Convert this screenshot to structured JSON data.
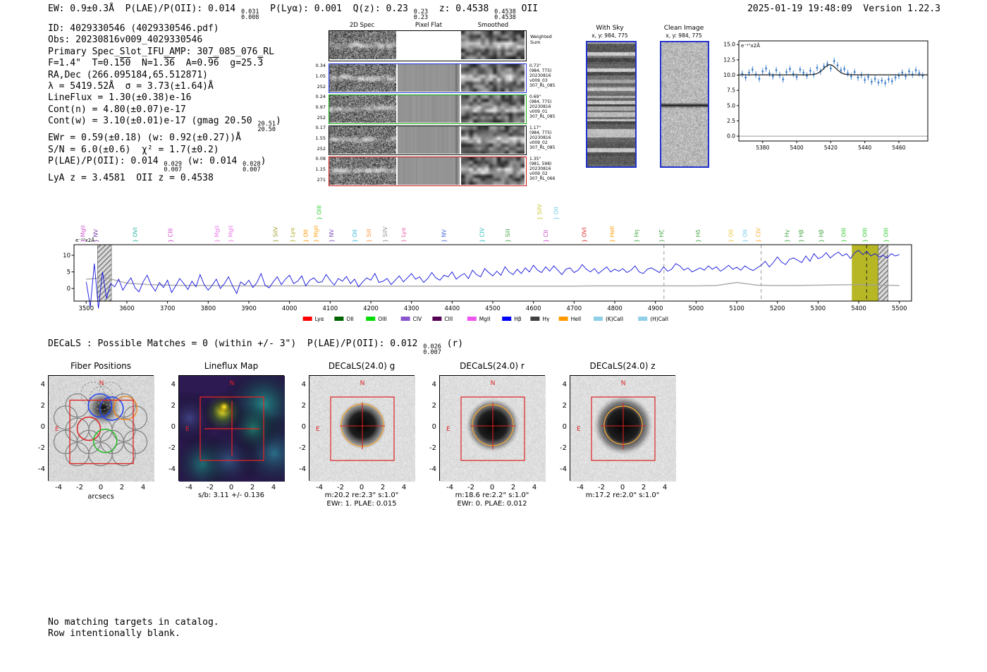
{
  "header": {
    "left": [
      {
        "t": "EW: 0.9±0.3Å  P(LAE)/P(OII): 0.014 "
      },
      {
        "frac": [
          "0.031",
          "0.008"
        ]
      },
      {
        "t": "  P(Lyα): 0.001  Q(z): 0.23 "
      },
      {
        "frac": [
          "0.23",
          "0.23"
        ]
      },
      {
        "t": "  z: 0.4538 "
      },
      {
        "frac": [
          "0.4538",
          "0.4538"
        ]
      },
      {
        "t": " OII"
      }
    ],
    "right": "2025-01-19 19:48:09  Version 1.22.3"
  },
  "info_lines": [
    [
      {
        "t": "ID: 4029330546 (4029330546.pdf)"
      }
    ],
    [
      {
        "t": "Obs: 20230816v009_4029330546"
      }
    ],
    [
      {
        "t": "Primary Spec_Slot_IFU_AMP: 307_085_076_RL"
      }
    ],
    [
      {
        "t": "F=1.4\"  T=0.1"
      },
      {
        "t": "50",
        "o": true
      },
      {
        "t": "  N=1."
      },
      {
        "t": "36",
        "o": true
      },
      {
        "t": "  A=0."
      },
      {
        "t": "96",
        "o": true
      },
      {
        "t": "  g=25."
      },
      {
        "t": "3",
        "o": true
      }
    ],
    [
      {
        "t": "RA,Dec (266.095184,65.512871)"
      }
    ],
    [
      {
        "t": "λ = 5419.52Å  σ = 3.73(±1.64)Å"
      }
    ],
    [
      {
        "t": "LineFlux = 1.30(±0.38)e-16"
      }
    ],
    [
      {
        "t": "Cont(n) = 4.80(±0.07)e-17"
      }
    ],
    [
      {
        "t": "Cont(w) = 3.10(±0.01)e-17 (gmag 20.50 "
      },
      {
        "frac": [
          "20.51",
          "20.50"
        ]
      },
      {
        "t": ")"
      }
    ],
    [
      {
        "t": "EWr = 0.59(±0.18) (w: 0.92(±0.27))Å"
      }
    ],
    [
      {
        "t": "S/N = 6.0(±0.6)  χ² = 1.7(±0.2)"
      }
    ],
    [
      {
        "t": "P(LAE)/P(OII): 0.014 "
      },
      {
        "frac": [
          "0.029",
          "0.007"
        ]
      },
      {
        "t": " (w: 0.014 "
      },
      {
        "frac": [
          "0.028",
          "0.007"
        ]
      },
      {
        "t": ")"
      }
    ],
    [
      {
        "t": "LyA z = 3.4581  OII z = 0.4538"
      }
    ]
  ],
  "spec2d": {
    "col_headers": [
      "2D Spec",
      "Pixel Flat",
      "Smoothed"
    ],
    "sum_label": [
      "Weighted",
      "Sum"
    ],
    "rows": [
      {
        "left": [
          "0.34",
          "1.05",
          "252"
        ],
        "right": [
          "0.73\"",
          "(984, 775)",
          "20230816",
          "v009_03",
          "307_RL_085"
        ],
        "color": "#2233dd"
      },
      {
        "left": [
          "0.24",
          "0.97",
          "252"
        ],
        "right": [
          "0.69\"",
          "(984, 775)",
          "20230816",
          "v009_01",
          "307_RL_085"
        ],
        "color": "#11aa11"
      },
      {
        "left": [
          "0.17",
          "1.55",
          "252"
        ],
        "right": [
          "1.17\"",
          "(984, 775)",
          "20230816",
          "v009_02",
          "307_RL_085"
        ],
        "color": "#000000"
      },
      {
        "left": [
          "0.08",
          "1.15",
          "271"
        ],
        "right": [
          "1.35\"",
          "(981, 598)",
          "20230816",
          "v009_02",
          "307_RL_066"
        ],
        "color": "#cc1111"
      }
    ]
  },
  "sky_panels": [
    {
      "title": "With Sky",
      "subtitle": "x, y: 984, 775"
    },
    {
      "title": "Clean Image",
      "subtitle": "x, y: 984, 775"
    }
  ],
  "decals_line": [
    {
      "t": "DECaLS : Possible Matches = 0 (within +/- 3\")  P(LAE)/P(OII): 0.012 "
    },
    {
      "frac": [
        "0.026",
        "0.007"
      ]
    },
    {
      "t": " (r)"
    }
  ],
  "cutouts": [
    {
      "name": "fiber-positions-panel",
      "kind": "fiber",
      "title": "Fiber Positions",
      "xlabel": "arcsecs"
    },
    {
      "name": "lineflux-map-panel",
      "kind": "lineflux",
      "title": "Lineflux Map",
      "caption": "s/b: 3.11 +/- 0.136"
    },
    {
      "name": "decals-g-panel",
      "kind": "decals",
      "title": "DECaLS(24.0) g",
      "caption": "m:20.2 re:2.3\" s:1.0\"",
      "caption2": "EWr: 1. PLAE: 0.015"
    },
    {
      "name": "decals-r-panel",
      "kind": "decals",
      "title": "DECaLS(24.0) r",
      "caption": "m:18.6 re:2.2\" s:1.0\"",
      "caption2": "EWr: 0. PLAE: 0.012"
    },
    {
      "name": "decals-z-panel",
      "kind": "decals",
      "title": "DECaLS(24.0) z",
      "caption": "m:17.2 re:2.0\" s:1.0\""
    }
  ],
  "cutout_axis": {
    "ticks": [
      -4,
      -2,
      0,
      2,
      4
    ],
    "north": "N",
    "east": "E"
  },
  "footer": [
    "No matching targets in catalog.",
    "Row intentionally blank."
  ],
  "chart_data": [
    {
      "type": "line",
      "name": "emission-line-fit",
      "corner_label": "e⁻¹⁷x2Å",
      "xlim": [
        5366,
        5477
      ],
      "ylim": [
        -0.8,
        15.6
      ],
      "x_ticks": [
        5380,
        5400,
        5420,
        5440,
        5460
      ],
      "y_ticks": [
        0.0,
        2.5,
        5.0,
        7.5,
        10.0,
        12.5,
        15.0
      ],
      "x_start": 5368,
      "x_step": 2,
      "points_y": [
        10.2,
        9.6,
        10.4,
        10.9,
        10.1,
        9.4,
        10.6,
        11.1,
        10.3,
        9.8,
        10.8,
        10.0,
        9.3,
        10.5,
        11.0,
        10.2,
        9.7,
        10.9,
        10.4,
        9.9,
        10.7,
        10.1,
        11.2,
        10.6,
        11.4,
        11.8,
        11.1,
        12.3,
        11.6,
        10.8,
        11.0,
        10.3,
        9.8,
        10.5,
        9.6,
        10.0,
        9.2,
        9.7,
        8.9,
        9.4,
        8.8,
        9.1,
        8.7,
        9.3,
        9.0,
        9.6,
        9.9,
        10.4,
        9.8,
        10.6,
        10.1,
        10.8,
        10.3,
        9.9
      ],
      "point_err": 0.55,
      "fit": {
        "continuum": 10.05,
        "amplitude": 1.65,
        "mu": 5419.5,
        "sigma": 3.73
      },
      "point_color": "#3b7dc8",
      "fit_color": "#1a1a1a"
    },
    {
      "type": "line",
      "name": "full-width-spectrum",
      "corner_label": "e⁻¹⁷x2Å",
      "xlim": [
        3470,
        5530
      ],
      "ylim": [
        -3.8,
        13.2
      ],
      "x_ticks": [
        3500,
        3600,
        3700,
        3800,
        3900,
        4000,
        4100,
        4200,
        4300,
        4400,
        4500,
        4600,
        4700,
        4800,
        4900,
        5000,
        5100,
        5200,
        5300,
        5400,
        5500
      ],
      "y_ticks": [
        0,
        5,
        10
      ],
      "x_start": 3500,
      "x_step": 10,
      "flux": [
        2.0,
        -5.5,
        7.5,
        -6.0,
        5.0,
        -3.0,
        1.5,
        0.5,
        2.8,
        -0.5,
        1.5,
        3.2,
        0.2,
        -1.0,
        2.0,
        4.0,
        1.0,
        -0.8,
        1.8,
        0.3,
        2.5,
        -1.2,
        0.8,
        3.0,
        1.5,
        -0.3,
        2.2,
        0.5,
        4.2,
        1.2,
        -0.5,
        1.0,
        2.8,
        0.0,
        1.5,
        3.5,
        0.8,
        -1.5,
        2.0,
        1.0,
        2.5,
        0.3,
        1.8,
        4.5,
        1.0,
        0.2,
        2.0,
        3.5,
        1.2,
        2.8,
        4.0,
        1.5,
        2.2,
        3.8,
        0.8,
        2.5,
        3.2,
        1.8,
        2.0,
        4.2,
        2.5,
        1.0,
        3.0,
        2.2,
        3.6,
        1.5,
        2.8,
        0.5,
        2.0,
        3.2,
        2.5,
        4.5,
        1.8,
        2.2,
        3.0,
        1.2,
        2.5,
        3.8,
        2.0,
        3.2,
        4.5,
        2.8,
        3.5,
        1.8,
        3.0,
        4.8,
        3.2,
        2.5,
        4.0,
        3.5,
        5.0,
        2.8,
        3.8,
        4.5,
        3.0,
        5.5,
        4.2,
        3.5,
        6.0,
        4.8,
        3.8,
        5.2,
        4.0,
        6.5,
        5.0,
        4.2,
        5.8,
        4.5,
        6.2,
        5.0,
        7.0,
        5.5,
        4.8,
        6.5,
        5.2,
        6.8,
        5.5,
        4.2,
        5.8,
        6.2,
        4.8,
        5.5,
        7.2,
        5.8,
        5.0,
        6.0,
        4.5,
        5.5,
        6.5,
        5.0,
        5.8,
        5.2,
        6.0,
        4.8,
        5.5,
        6.8,
        5.0,
        4.5,
        5.8,
        6.2,
        5.5,
        4.8,
        6.5,
        5.2,
        5.8,
        7.5,
        6.8,
        5.5,
        6.2,
        5.0,
        5.6,
        6.2,
        5.5,
        6.8,
        5.8,
        6.5,
        5.2,
        6.0,
        7.0,
        5.8,
        6.4,
        5.5,
        6.8,
        6.0,
        5.4,
        6.2,
        7.0,
        8.2,
        6.5,
        7.8,
        9.5,
        8.0,
        7.2,
        8.8,
        9.2,
        8.5,
        7.8,
        9.8,
        8.2,
        10.5,
        9.0,
        9.5,
        10.8,
        9.2,
        10.2,
        11.0,
        9.8,
        10.5,
        9.0,
        10.8,
        11.5,
        10.2,
        11.2,
        9.8,
        10.5,
        9.5,
        10.0,
        9.2,
        10.5,
        9.8,
        10.2
      ],
      "noise_x_start": 3500,
      "noise_x_step": 50,
      "noise": [
        2.8,
        3.2,
        1.6,
        1.2,
        1.0,
        0.9,
        0.9,
        0.8,
        0.8,
        0.8,
        0.8,
        0.8,
        0.7,
        0.7,
        0.7,
        0.7,
        0.7,
        0.7,
        0.7,
        0.7,
        0.7,
        0.7,
        0.7,
        0.7,
        0.7,
        0.8,
        0.8,
        0.8,
        0.8,
        0.8,
        0.8,
        0.9,
        1.8,
        1.0,
        0.9,
        0.9,
        1.0,
        1.1,
        1.2,
        1.0,
        0.9
      ],
      "line_color": "#1111dd",
      "noise_color": "#a0a0a0",
      "bands": [
        {
          "x0": 3528,
          "x1": 3562,
          "style": "hatch"
        },
        {
          "x0": 5383,
          "x1": 5448,
          "style": "solid",
          "color": "#b3b31a"
        },
        {
          "x0": 5448,
          "x1": 5472,
          "style": "hatch"
        }
      ],
      "vlines": [
        {
          "x": 4921,
          "color": "#999999"
        },
        {
          "x": 5160,
          "color": "#999999"
        },
        {
          "x": 5419.5,
          "color": "#222222"
        }
      ],
      "line_labels": [
        {
          "name": "MgII",
          "x": 3497,
          "color": "#cc55cc"
        },
        {
          "name": "NV",
          "x": 3528,
          "color": "#7a3fa8"
        },
        {
          "name": "OVI",
          "x": 3625,
          "color": "#2ab0a0"
        },
        {
          "name": "CIII",
          "x": 3712,
          "color": "#cc44cc"
        },
        {
          "name": "MgII",
          "x": 3826,
          "color": "#e878e8"
        },
        {
          "name": "MgII",
          "x": 3860,
          "color": "#e878e8"
        },
        {
          "name": "SiIV",
          "x": 3970,
          "color": "#a0a030"
        },
        {
          "name": "Lyα",
          "x": 4012,
          "color": "#b0b030"
        },
        {
          "name": "OII",
          "x": 4045,
          "color": "#ff9500"
        },
        {
          "name": "MgII",
          "x": 4070,
          "color": "#ffa520"
        },
        {
          "name": "OIII",
          "x": 4078,
          "color": "#33cc33",
          "up": 1
        },
        {
          "name": "NV",
          "x": 4108,
          "color": "#8050c0"
        },
        {
          "name": "OII",
          "x": 4165,
          "color": "#38b8d8"
        },
        {
          "name": "SiII",
          "x": 4200,
          "color": "#ff9540"
        },
        {
          "name": "SiIV",
          "x": 4240,
          "color": "#909090"
        },
        {
          "name": "Lyα",
          "x": 4285,
          "color": "#e868a8"
        },
        {
          "name": "NV",
          "x": 4385,
          "color": "#4868d8"
        },
        {
          "name": "CIV",
          "x": 4478,
          "color": "#28b8b8"
        },
        {
          "name": "SiII",
          "x": 4542,
          "color": "#48a848"
        },
        {
          "name": "SiIV",
          "x": 4620,
          "color": "#c8c838",
          "up": 1
        },
        {
          "name": "CII",
          "x": 4635,
          "color": "#cc44cc"
        },
        {
          "name": "OII",
          "x": 4660,
          "color": "#70c8e8",
          "up": 1
        },
        {
          "name": "OVI",
          "x": 4730,
          "color": "#dd2828"
        },
        {
          "name": "HeII",
          "x": 4798,
          "color": "#ff9900"
        },
        {
          "name": "Hη",
          "x": 4858,
          "color": "#48a848"
        },
        {
          "name": "Hζ",
          "x": 4920,
          "color": "#48a848"
        },
        {
          "name": "Hδ",
          "x": 5010,
          "color": "#48a848"
        },
        {
          "name": "OII",
          "x": 5090,
          "color": "#e8c838"
        },
        {
          "name": "OII",
          "x": 5125,
          "color": "#70c8e8"
        },
        {
          "name": "CIV",
          "x": 5158,
          "color": "#ffaa30"
        },
        {
          "name": "Hγ",
          "x": 5228,
          "color": "#48a848"
        },
        {
          "name": "Hβ",
          "x": 5263,
          "color": "#48a848"
        },
        {
          "name": "Hβ",
          "x": 5312,
          "color": "#48a848"
        },
        {
          "name": "OIII",
          "x": 5368,
          "color": "#33cc33"
        },
        {
          "name": "OIII",
          "x": 5420,
          "color": "#33cc33"
        },
        {
          "name": "OIII",
          "x": 5472,
          "color": "#33cc33"
        }
      ],
      "legend": [
        {
          "label": "Lyα",
          "color": "#ff0000"
        },
        {
          "label": "OII",
          "color": "#006400"
        },
        {
          "label": "OIII",
          "color": "#00dd00"
        },
        {
          "label": "CIV",
          "color": "#8855cc"
        },
        {
          "label": "CIII",
          "color": "#550055"
        },
        {
          "label": "MgII",
          "color": "#ee55ee"
        },
        {
          "label": "Hβ",
          "color": "#0000ff"
        },
        {
          "label": "Hγ",
          "color": "#404040"
        },
        {
          "label": "HeII",
          "color": "#ff9900"
        },
        {
          "label": "(K)CaII",
          "color": "#8fcfe8"
        },
        {
          "label": "(H)CaII",
          "color": "#8fcfe8"
        }
      ]
    }
  ]
}
